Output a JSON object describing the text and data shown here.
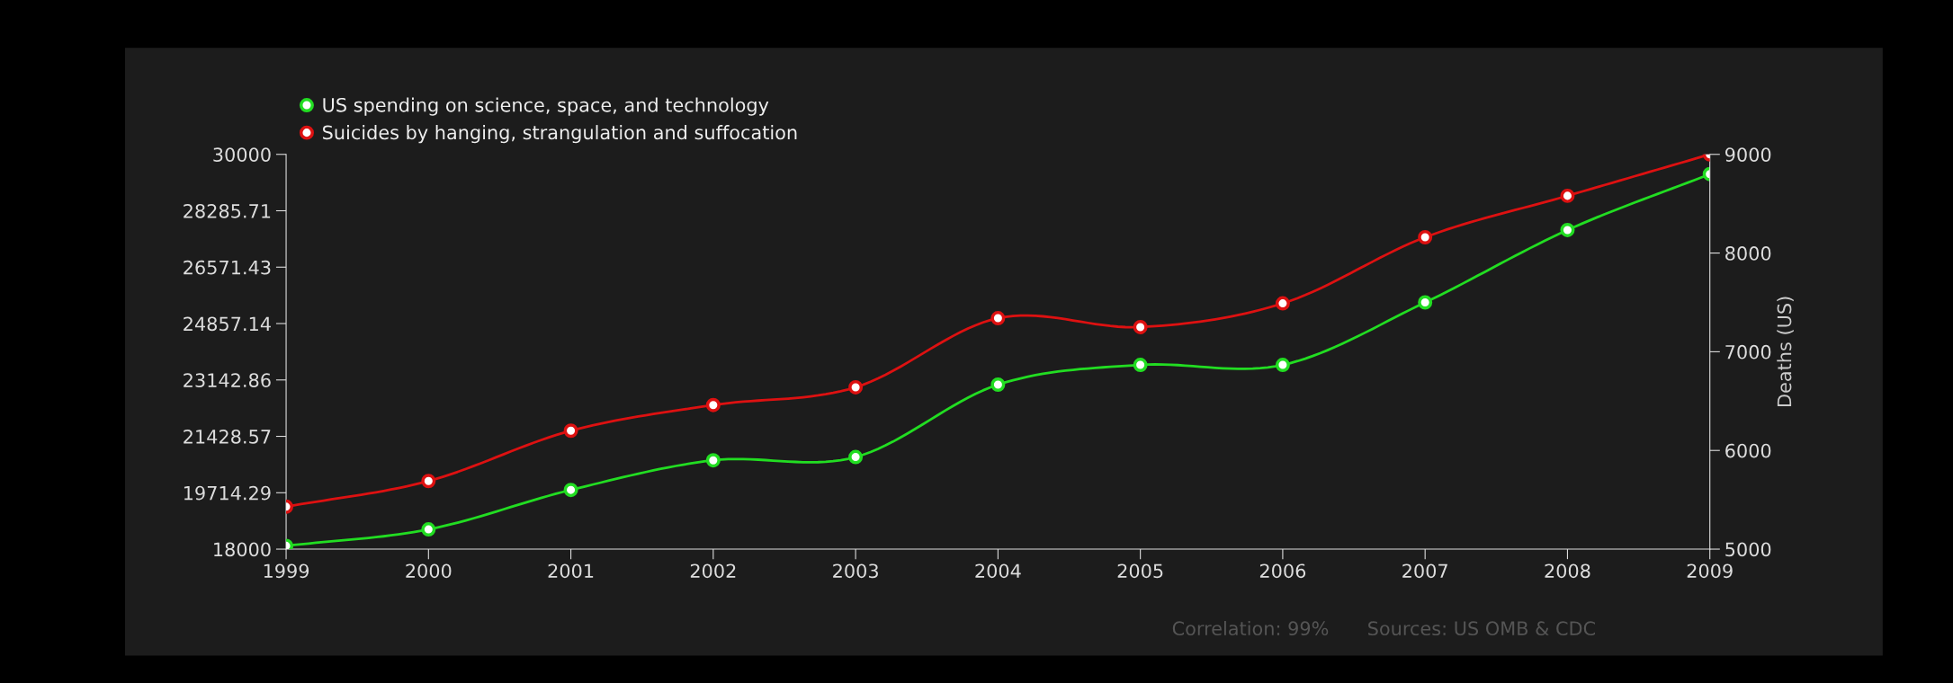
{
  "chart_data": {
    "type": "line",
    "x": [
      1999,
      2000,
      2001,
      2002,
      2003,
      2004,
      2005,
      2006,
      2007,
      2008,
      2009
    ],
    "series": [
      {
        "name": "US spending on science, space, and technology",
        "color": "#22dd22",
        "values": [
          18100,
          18600,
          19800,
          20700,
          20800,
          23000,
          23600,
          23600,
          25500,
          27700,
          29400
        ]
      },
      {
        "name": "Suicides by hanging, strangulation and suffocation",
        "color": "#dd1111",
        "axis": "y2",
        "values": [
          5430,
          5690,
          6200,
          6460,
          6640,
          7340,
          7250,
          7490,
          8160,
          8580,
          9000
        ]
      }
    ],
    "xlim": [
      1999,
      2009
    ],
    "xticks": [
      1999,
      2000,
      2001,
      2002,
      2003,
      2004,
      2005,
      2006,
      2007,
      2008,
      2009
    ],
    "ylim": [
      18000,
      30000
    ],
    "yticks": [
      18000,
      19714.29,
      21428.57,
      23142.86,
      24857.14,
      26571.43,
      28285.71,
      30000
    ],
    "y2lim": [
      5000,
      9000
    ],
    "y2ticks": [
      5000,
      6000,
      7000,
      8000,
      9000
    ],
    "y2label": "Deaths (US)",
    "marker": "circle",
    "line_style": "solid",
    "grid": false,
    "legend": "top left",
    "annotations": [
      "Correlation: 99%",
      "Sources: US OMB & CDC"
    ]
  }
}
